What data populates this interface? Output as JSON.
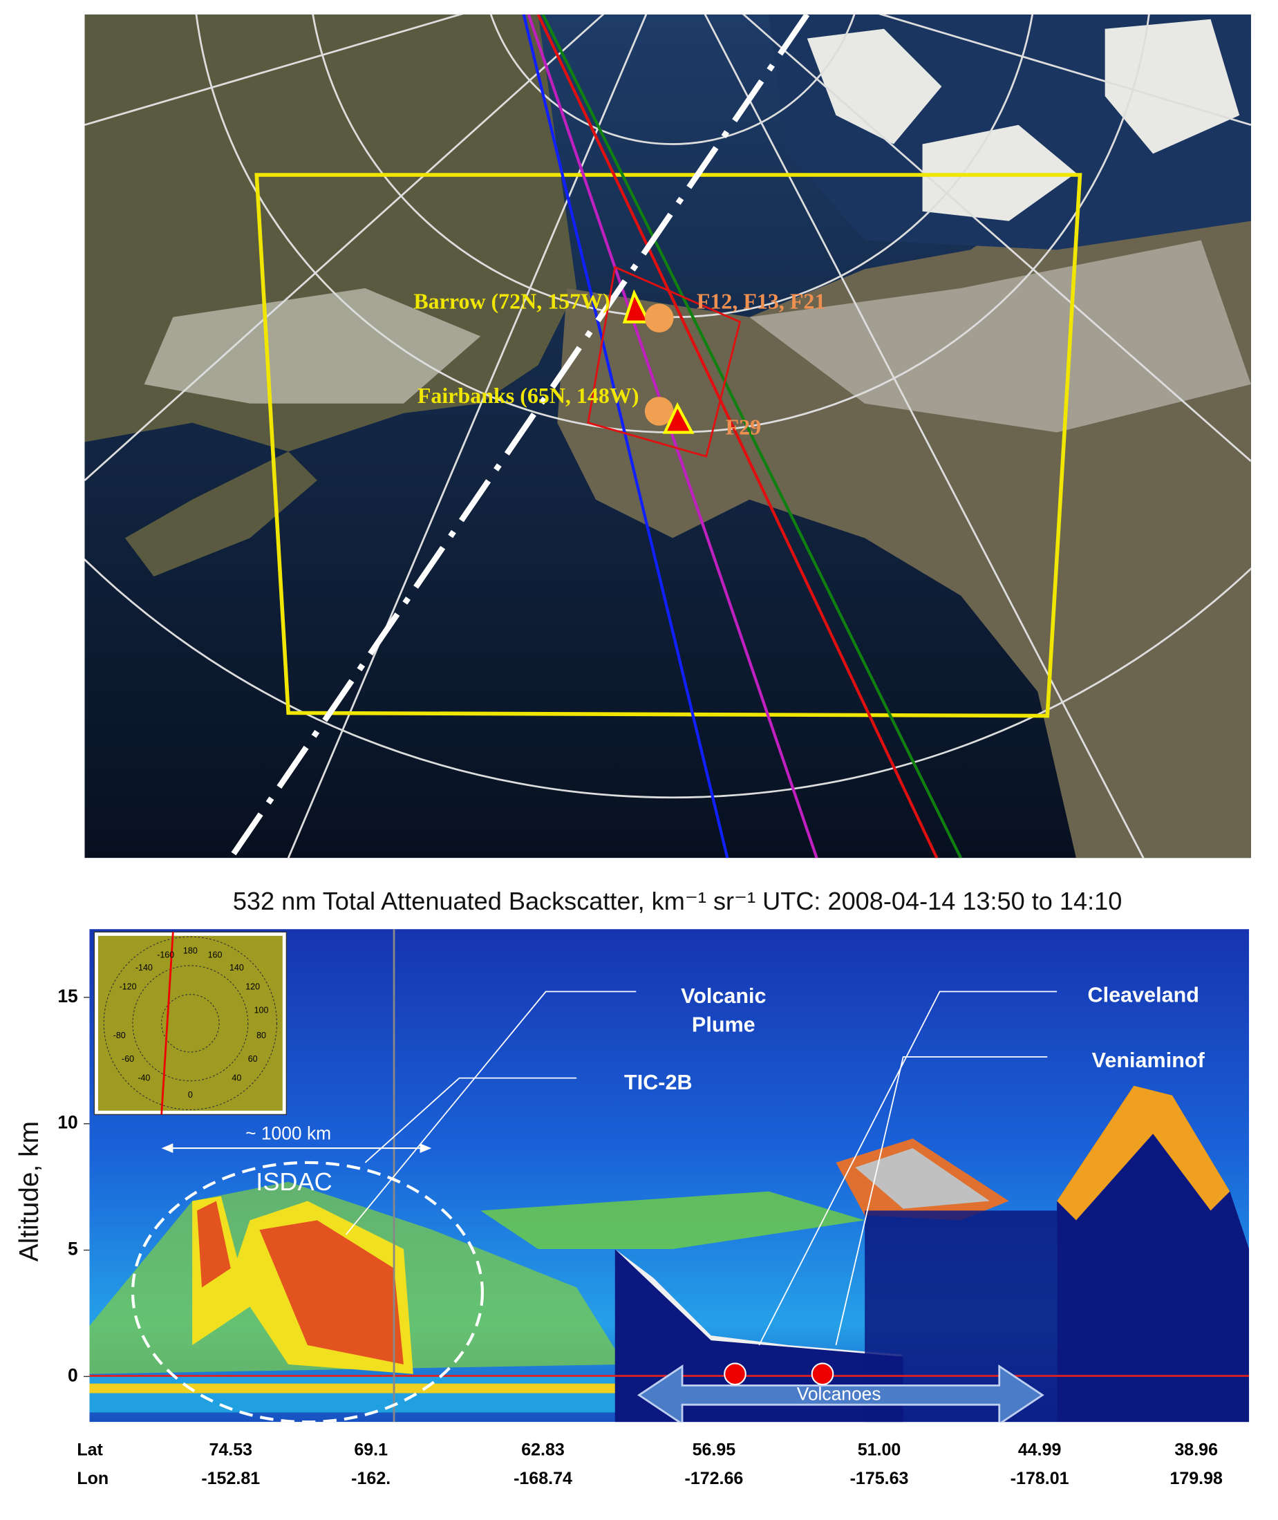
{
  "map": {
    "barrow": "Barrow (72N, 157W)",
    "fairbanks": "Fairbanks (65N, 148W)",
    "flights_a": "F12, F13, F21",
    "flights_b": "F29"
  },
  "chart_data": {
    "type": "curtain",
    "title": "532 nm Total Attenuated Backscatter, km⁻¹ sr⁻¹  UTC: 2008-04-14 13:50 to 14:10",
    "y_label": "Altitude, km",
    "ylim": [
      -1.8,
      17.7
    ],
    "yticks": [
      0,
      5,
      10,
      15
    ],
    "lat_label": "Lat",
    "lon_label": "Lon",
    "lat": [
      "74.53",
      "69.1",
      "62.83",
      "56.95",
      "51.00",
      "44.99",
      "38.96"
    ],
    "lon": [
      "-152.81",
      "-162.",
      "-168.74",
      "-172.66",
      "-175.63",
      "-178.01",
      "179.98"
    ],
    "annotations": {
      "volcanic_1": "Volcanic",
      "volcanic_2": "Plume",
      "cleaveland": "Cleaveland",
      "veniaminof": "Veniaminof",
      "tic": "TIC-2B",
      "distance": "~ 1000 km",
      "isdac": "ISDAC",
      "volcanoes": "Volcanoes"
    },
    "inset_labels": [
      "180",
      "160",
      "140",
      "120",
      "100",
      "80",
      "60",
      "40",
      "0",
      "-40",
      "-60",
      "-80",
      "-120",
      "-140",
      "-160"
    ]
  }
}
